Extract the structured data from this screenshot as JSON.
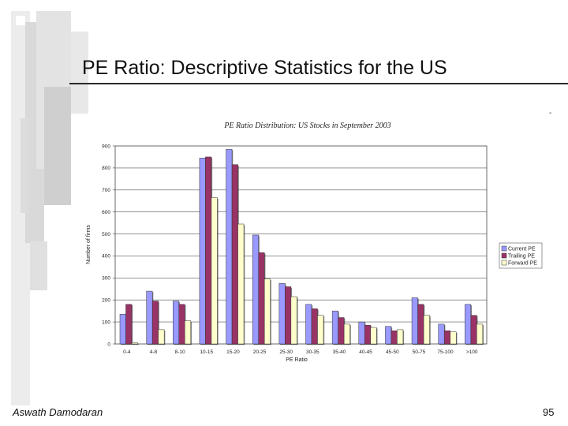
{
  "slide": {
    "title": "PE Ratio: Descriptive Statistics for the US",
    "corner_mark": "-",
    "author": "Aswath Damodaran",
    "page_number": "95"
  },
  "colors": {
    "current_pe": "#9999ff",
    "trailing_pe": "#993366",
    "forward_pe": "#ffffcc",
    "deco_gray": "#d4d4d4"
  },
  "chart_data": {
    "type": "bar",
    "title": "PE Ratio Distribution: US Stocks in September 2003",
    "xlabel": "PE Ratio",
    "ylabel": "Number of firms",
    "ylim": [
      0,
      900
    ],
    "yticks": [
      "0",
      "100",
      "200",
      "300",
      "400",
      "500",
      "600",
      "700",
      "800",
      "900"
    ],
    "grid": true,
    "legend_position": "right",
    "categories": [
      "0-4",
      "4-8",
      "8-10",
      "10-15",
      "15-20",
      "20-25",
      "25-30",
      "30-35",
      "35-40",
      "40-45",
      "45-50",
      "50-75",
      "75-100",
      ">100"
    ],
    "series": [
      {
        "name": "Current PE",
        "values": [
          135,
          240,
          195,
          845,
          885,
          495,
          275,
          180,
          150,
          100,
          80,
          210,
          90,
          180
        ]
      },
      {
        "name": "Trailing PE",
        "values": [
          180,
          195,
          180,
          850,
          815,
          415,
          260,
          160,
          120,
          85,
          60,
          180,
          60,
          130
        ]
      },
      {
        "name": "Forward PE",
        "values": [
          5,
          65,
          105,
          665,
          545,
          295,
          215,
          130,
          90,
          75,
          65,
          130,
          55,
          90
        ]
      }
    ]
  }
}
